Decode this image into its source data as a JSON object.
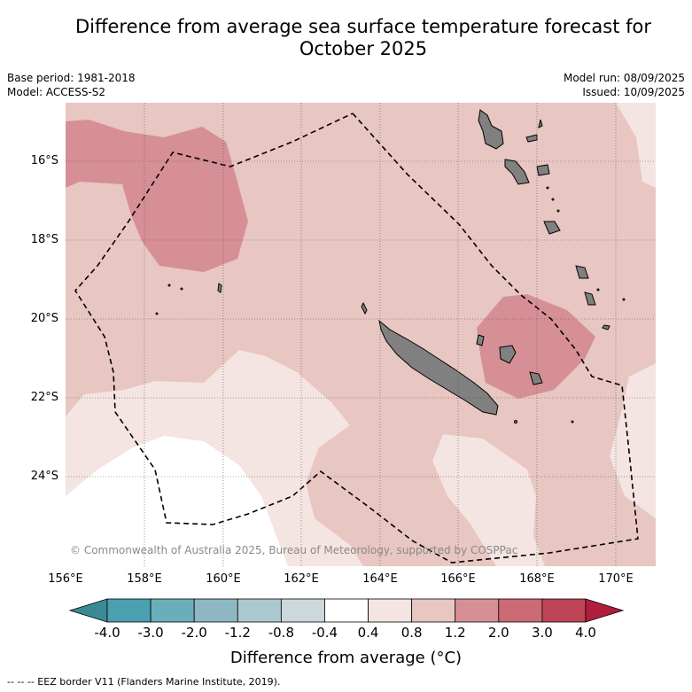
{
  "title_line1": "Difference from average sea surface temperature forecast for",
  "title_line2": "October 2025",
  "base_period": "Base period: 1981-2018",
  "model": "Model: ACCESS-S2",
  "model_run": "Model run: 08/09/2025",
  "issued": "Issued: 10/09/2025",
  "lat_labels": [
    "16°S",
    "18°S",
    "20°S",
    "22°S",
    "24°S"
  ],
  "lon_labels": [
    "156°E",
    "158°E",
    "160°E",
    "162°E",
    "164°E",
    "166°E",
    "168°E",
    "170°E"
  ],
  "copyright": "© Commonwealth of Australia 2025, Bureau of Meteorology, supported by COSPPac",
  "colorbar": {
    "ticks": [
      "-4.0",
      "-3.0",
      "-2.0",
      "-1.2",
      "-0.8",
      "-0.4",
      "0.4",
      "0.8",
      "1.2",
      "2.0",
      "3.0",
      "4.0"
    ],
    "colors": [
      "#3a8a96",
      "#4aa0b0",
      "#6aaebb",
      "#8db8c3",
      "#aac8cd",
      "#ccd8db",
      "#ffffff",
      "#f4e4e2",
      "#e8c6c1",
      "#d68f95",
      "#cc6a76",
      "#bf4456",
      "#b01e3e"
    ],
    "label": "Difference from average (°C)"
  },
  "map_colors": {
    "anomaly_0_4_0_8": "#f4e4e2",
    "anomaly_0_8_1_2": "#e8c6c1",
    "anomaly_1_2_2_0": "#d68f95",
    "land": "#808080"
  },
  "footer": "--  --  -- EEZ border V11 (Flanders Marine Institute, 2019)."
}
